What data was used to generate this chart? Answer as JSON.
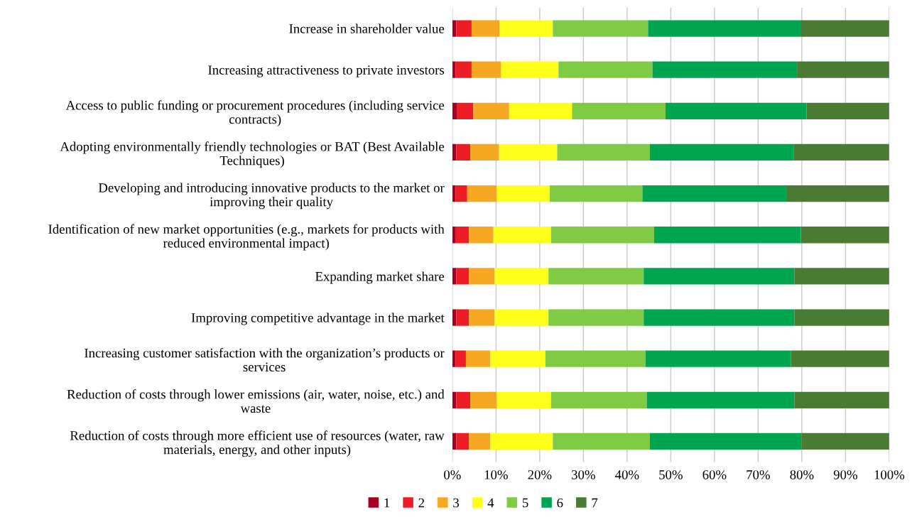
{
  "chart_data": {
    "type": "bar",
    "orientation": "horizontal",
    "stacked": true,
    "categories": [
      "Increase in shareholder value",
      "Increasing attractiveness to private investors",
      "Access to public funding or procurement procedures (including service\ncontracts)",
      "Adopting environmentally friendly technologies or BAT (Best Available\nTechniques)",
      "Developing and introducing innovative products to the market or\nimproving their quality",
      "Identification of new market opportunities (e.g., markets for products with\nreduced environmental impact)",
      "Expanding market share",
      "Improving competitive advantage in the market",
      "Increasing customer satisfaction with the organization’s products or\nservices",
      "Reduction of costs through lower emissions (air, water, noise, etc.) and\nwaste",
      "Reduction of costs through more efficient use of resources (water, raw\nmaterials, energy, and other inputs)"
    ],
    "series": [
      {
        "name": "1",
        "color": "#a50021",
        "values": [
          0.9,
          0.7,
          1.0,
          0.9,
          0.7,
          0.8,
          0.9,
          0.9,
          0.7,
          0.9,
          0.9
        ]
      },
      {
        "name": "2",
        "color": "#ee1c25",
        "values": [
          3.5,
          3.7,
          3.8,
          3.2,
          2.7,
          3.0,
          2.9,
          2.9,
          2.4,
          3.2,
          2.9
        ]
      },
      {
        "name": "3",
        "color": "#f7a823",
        "values": [
          6.4,
          6.7,
          8.2,
          6.6,
          6.7,
          5.6,
          5.9,
          5.9,
          5.6,
          6.0,
          4.9
        ]
      },
      {
        "name": "4",
        "color": "#ffff1a",
        "values": [
          12.2,
          13.2,
          14.4,
          13.3,
          12.2,
          13.2,
          12.3,
          12.3,
          12.6,
          12.5,
          14.3
        ]
      },
      {
        "name": "5",
        "color": "#7fcc44",
        "values": [
          21.8,
          21.5,
          21.4,
          21.2,
          21.2,
          23.6,
          21.8,
          21.8,
          22.9,
          21.9,
          22.2
        ]
      },
      {
        "name": "6",
        "color": "#00a550",
        "values": [
          34.9,
          33.1,
          32.3,
          32.9,
          33.1,
          33.6,
          34.5,
          34.5,
          33.3,
          33.8,
          34.7
        ]
      },
      {
        "name": "7",
        "color": "#4a7b33",
        "values": [
          20.3,
          21.1,
          18.9,
          21.9,
          23.4,
          20.2,
          21.7,
          21.7,
          22.5,
          21.7,
          20.1
        ]
      }
    ],
    "xlim": [
      0,
      100
    ],
    "xticks": [
      {
        "value": 0,
        "label": "0%"
      },
      {
        "value": 10,
        "label": "10%"
      },
      {
        "value": 20,
        "label": "20%"
      },
      {
        "value": 30,
        "label": "30%"
      },
      {
        "value": 40,
        "label": "40%"
      },
      {
        "value": 50,
        "label": "50%"
      },
      {
        "value": 60,
        "label": "60%"
      },
      {
        "value": 70,
        "label": "70%"
      },
      {
        "value": 80,
        "label": "80%"
      },
      {
        "value": 90,
        "label": "90%"
      },
      {
        "value": 100,
        "label": "100%"
      }
    ],
    "grid": "x",
    "legend": "bottom"
  }
}
